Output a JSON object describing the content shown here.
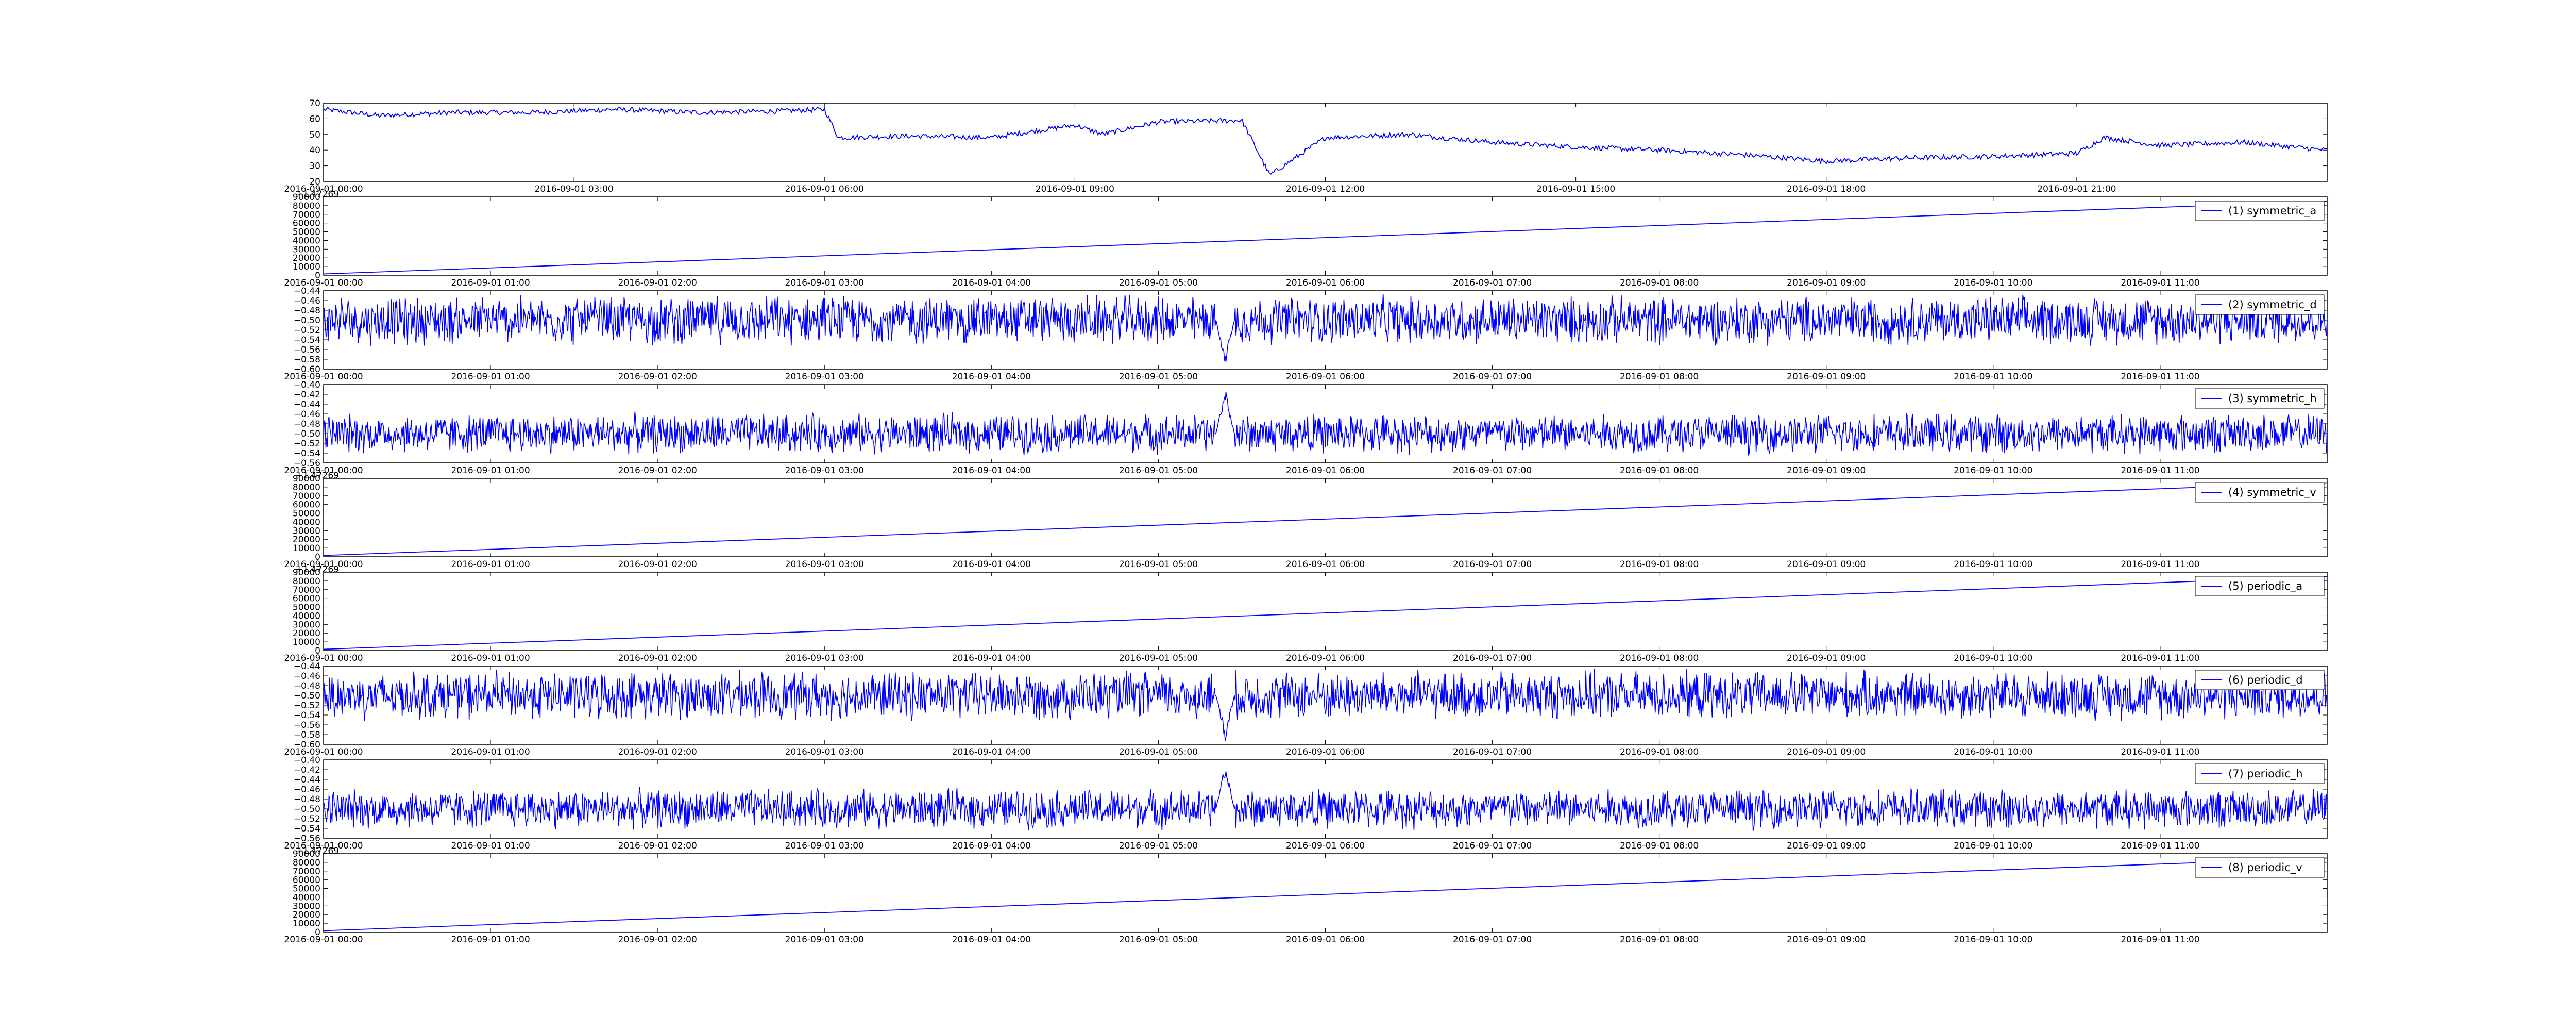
{
  "line_color": "#0000ff",
  "chart_data": [
    {
      "type": "line",
      "title": "",
      "xlabel": "",
      "ylabel": "",
      "legend": null,
      "ylim": [
        20,
        70
      ],
      "yticks": [
        "20",
        "30",
        "40",
        "50",
        "60",
        "70"
      ],
      "xlim": [
        "2016-09-01 00:00",
        "2016-09-02 00:00"
      ],
      "xticks": [
        "2016-09-01 00:00",
        "2016-09-01 03:00",
        "2016-09-01 06:00",
        "2016-09-01 09:00",
        "2016-09-01 12:00",
        "2016-09-01 15:00",
        "2016-09-01 18:00",
        "2016-09-01 21:00"
      ],
      "x_offset_label": "+1.47269",
      "series": [
        {
          "x": [
            "00:00",
            "00:40",
            "01:30",
            "02:30",
            "03:30",
            "04:30",
            "05:30",
            "06:00",
            "06:10",
            "07:00",
            "08:00",
            "09:00",
            "09:20",
            "10:00",
            "11:00",
            "11:20",
            "12:00",
            "13:00",
            "14:00",
            "15:00",
            "16:00",
            "17:00",
            "18:00",
            "19:00",
            "20:00",
            "21:00",
            "21:20",
            "22:00",
            "23:00",
            "23:59"
          ],
          "values": [
            66,
            62,
            64,
            64,
            66,
            64,
            65,
            66,
            48,
            49,
            48,
            56,
            50,
            58,
            59,
            24,
            48,
            50,
            45,
            42,
            40,
            37,
            33,
            35,
            36,
            38,
            48,
            43,
            45,
            40
          ]
        }
      ]
    },
    {
      "type": "line",
      "title": "",
      "xlabel": "",
      "ylabel": "",
      "legend": "(1) symmetric_a",
      "ylim": [
        0,
        90000
      ],
      "yticks": [
        "0",
        "10000",
        "20000",
        "30000",
        "40000",
        "50000",
        "60000",
        "70000",
        "80000",
        "90000"
      ],
      "xlim": [
        "2016-09-01 00:00",
        "2016-09-01 12:00"
      ],
      "xticks": [
        "2016-09-01 00:00",
        "2016-09-01 01:00",
        "2016-09-01 02:00",
        "2016-09-01 03:00",
        "2016-09-01 04:00",
        "2016-09-01 05:00",
        "2016-09-01 06:00",
        "2016-09-01 07:00",
        "2016-09-01 08:00",
        "2016-09-01 09:00",
        "2016-09-01 10:00",
        "2016-09-01 11:00"
      ],
      "series": [
        {
          "x": [
            "00:00",
            "12:00"
          ],
          "values": [
            1500,
            85000
          ]
        }
      ]
    },
    {
      "type": "line",
      "title": "",
      "xlabel": "",
      "ylabel": "",
      "legend": "(2) symmetric_d",
      "ylim": [
        -0.6,
        -0.44
      ],
      "yticks": [
        "−0.60",
        "−0.58",
        "−0.56",
        "−0.54",
        "−0.52",
        "−0.50",
        "−0.48",
        "−0.46",
        "−0.44"
      ],
      "xlim": [
        "2016-09-01 00:00",
        "2016-09-01 12:00"
      ],
      "xticks": [
        "2016-09-01 00:00",
        "2016-09-01 01:00",
        "2016-09-01 02:00",
        "2016-09-01 03:00",
        "2016-09-01 04:00",
        "2016-09-01 05:00",
        "2016-09-01 06:00",
        "2016-09-01 07:00",
        "2016-09-01 08:00",
        "2016-09-01 09:00",
        "2016-09-01 10:00",
        "2016-09-01 11:00"
      ],
      "series": [
        {
          "x": [
            "00:00",
            "12:00"
          ],
          "values": [
            -0.5,
            -0.5
          ],
          "approx_range": [
            -0.56,
            -0.45
          ],
          "spike": {
            "x": "05:24",
            "value": -0.595
          }
        }
      ]
    },
    {
      "type": "line",
      "title": "",
      "xlabel": "",
      "ylabel": "",
      "legend": "(3) symmetric_h",
      "ylim": [
        -0.56,
        -0.4
      ],
      "yticks": [
        "−0.56",
        "−0.54",
        "−0.52",
        "−0.50",
        "−0.48",
        "−0.46",
        "−0.44",
        "−0.42",
        "−0.40"
      ],
      "xlim": [
        "2016-09-01 00:00",
        "2016-09-01 12:00"
      ],
      "xticks": [
        "2016-09-01 00:00",
        "2016-09-01 01:00",
        "2016-09-01 02:00",
        "2016-09-01 03:00",
        "2016-09-01 04:00",
        "2016-09-01 05:00",
        "2016-09-01 06:00",
        "2016-09-01 07:00",
        "2016-09-01 08:00",
        "2016-09-01 09:00",
        "2016-09-01 10:00",
        "2016-09-01 11:00"
      ],
      "x_offset_label": "+1.47269",
      "series": [
        {
          "x": [
            "00:00",
            "12:00"
          ],
          "values": [
            -0.5,
            -0.5
          ],
          "approx_range": [
            -0.545,
            -0.455
          ],
          "spike": {
            "x": "05:24",
            "value": -0.405
          }
        }
      ]
    },
    {
      "type": "line",
      "title": "",
      "xlabel": "",
      "ylabel": "",
      "legend": "(4) symmetric_v",
      "ylim": [
        0,
        90000
      ],
      "yticks": [
        "0",
        "10000",
        "20000",
        "30000",
        "40000",
        "50000",
        "60000",
        "70000",
        "80000",
        "90000"
      ],
      "xlim": [
        "2016-09-01 00:00",
        "2016-09-01 12:00"
      ],
      "xticks": [
        "2016-09-01 00:00",
        "2016-09-01 01:00",
        "2016-09-01 02:00",
        "2016-09-01 03:00",
        "2016-09-01 04:00",
        "2016-09-01 05:00",
        "2016-09-01 06:00",
        "2016-09-01 07:00",
        "2016-09-01 08:00",
        "2016-09-01 09:00",
        "2016-09-01 10:00",
        "2016-09-01 11:00"
      ],
      "x_offset_label": "+1.47269",
      "series": [
        {
          "x": [
            "00:00",
            "12:00"
          ],
          "values": [
            1500,
            85000
          ]
        }
      ]
    },
    {
      "type": "line",
      "title": "",
      "xlabel": "",
      "ylabel": "",
      "legend": "(5) periodic_a",
      "ylim": [
        0,
        90000
      ],
      "yticks": [
        "0",
        "10000",
        "20000",
        "30000",
        "40000",
        "50000",
        "60000",
        "70000",
        "80000",
        "90000"
      ],
      "xlim": [
        "2016-09-01 00:00",
        "2016-09-01 12:00"
      ],
      "xticks": [
        "2016-09-01 00:00",
        "2016-09-01 01:00",
        "2016-09-01 02:00",
        "2016-09-01 03:00",
        "2016-09-01 04:00",
        "2016-09-01 05:00",
        "2016-09-01 06:00",
        "2016-09-01 07:00",
        "2016-09-01 08:00",
        "2016-09-01 09:00",
        "2016-09-01 10:00",
        "2016-09-01 11:00"
      ],
      "series": [
        {
          "x": [
            "00:00",
            "12:00"
          ],
          "values": [
            1500,
            85000
          ]
        }
      ]
    },
    {
      "type": "line",
      "title": "",
      "xlabel": "",
      "ylabel": "",
      "legend": "(6) periodic_d",
      "ylim": [
        -0.6,
        -0.44
      ],
      "yticks": [
        "−0.60",
        "−0.58",
        "−0.56",
        "−0.54",
        "−0.52",
        "−0.50",
        "−0.48",
        "−0.46",
        "−0.44"
      ],
      "xlim": [
        "2016-09-01 00:00",
        "2016-09-01 12:00"
      ],
      "xticks": [
        "2016-09-01 00:00",
        "2016-09-01 01:00",
        "2016-09-01 02:00",
        "2016-09-01 03:00",
        "2016-09-01 04:00",
        "2016-09-01 05:00",
        "2016-09-01 06:00",
        "2016-09-01 07:00",
        "2016-09-01 08:00",
        "2016-09-01 09:00",
        "2016-09-01 10:00",
        "2016-09-01 11:00"
      ],
      "series": [
        {
          "x": [
            "00:00",
            "12:00"
          ],
          "values": [
            -0.5,
            -0.5
          ],
          "approx_range": [
            -0.56,
            -0.45
          ],
          "spike": {
            "x": "05:24",
            "value": -0.595
          }
        }
      ]
    },
    {
      "type": "line",
      "title": "",
      "xlabel": "",
      "ylabel": "",
      "legend": "(7) periodic_h",
      "ylim": [
        -0.56,
        -0.4
      ],
      "yticks": [
        "−0.56",
        "−0.54",
        "−0.52",
        "−0.50",
        "−0.48",
        "−0.46",
        "−0.44",
        "−0.42",
        "−0.40"
      ],
      "xlim": [
        "2016-09-01 00:00",
        "2016-09-01 12:00"
      ],
      "xticks": [
        "2016-09-01 00:00",
        "2016-09-01 01:00",
        "2016-09-01 02:00",
        "2016-09-01 03:00",
        "2016-09-01 04:00",
        "2016-09-01 05:00",
        "2016-09-01 06:00",
        "2016-09-01 07:00",
        "2016-09-01 08:00",
        "2016-09-01 09:00",
        "2016-09-01 10:00",
        "2016-09-01 11:00"
      ],
      "x_offset_label": "+1.47269",
      "series": [
        {
          "x": [
            "00:00",
            "12:00"
          ],
          "values": [
            -0.5,
            -0.5
          ],
          "approx_range": [
            -0.545,
            -0.455
          ],
          "spike": {
            "x": "05:24",
            "value": -0.405
          }
        }
      ]
    },
    {
      "type": "line",
      "title": "",
      "xlabel": "",
      "ylabel": "",
      "legend": "(8) periodic_v",
      "ylim": [
        0,
        90000
      ],
      "yticks": [
        "0",
        "10000",
        "20000",
        "30000",
        "40000",
        "50000",
        "60000",
        "70000",
        "80000",
        "90000"
      ],
      "xlim": [
        "2016-09-01 00:00",
        "2016-09-01 12:00"
      ],
      "xticks": [
        "2016-09-01 00:00",
        "2016-09-01 01:00",
        "2016-09-01 02:00",
        "2016-09-01 03:00",
        "2016-09-01 04:00",
        "2016-09-01 05:00",
        "2016-09-01 06:00",
        "2016-09-01 07:00",
        "2016-09-01 08:00",
        "2016-09-01 09:00",
        "2016-09-01 10:00",
        "2016-09-01 11:00"
      ],
      "series": [
        {
          "x": [
            "00:00",
            "12:00"
          ],
          "values": [
            1500,
            85000
          ]
        }
      ]
    }
  ]
}
